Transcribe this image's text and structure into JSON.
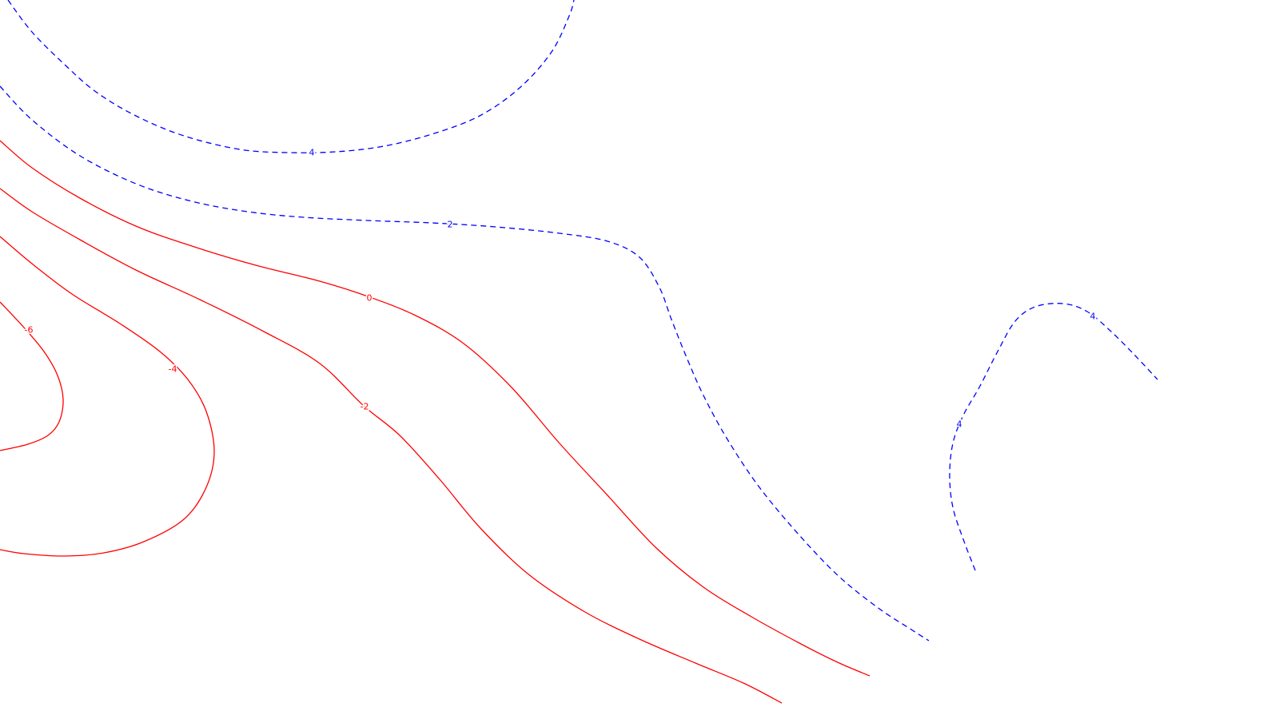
{
  "chart_data": {
    "type": "contour",
    "title": "",
    "xlabel": "",
    "ylabel": "",
    "grid": false,
    "legend": false,
    "colors": {
      "positive": "#0000ff",
      "negative": "#ff0000",
      "background": "#ffffff"
    },
    "line_styles": {
      "positive": "dashed",
      "negative": "solid"
    },
    "levels": [
      -6,
      -4,
      -2,
      0,
      2,
      4
    ],
    "contours": [
      {
        "level": 4,
        "label": "4",
        "sign": "positive",
        "points": [
          [
            10,
            0
          ],
          [
            40,
            40
          ],
          [
            80,
            80
          ],
          [
            120,
            115
          ],
          [
            170,
            145
          ],
          [
            230,
            170
          ],
          [
            300,
            187
          ],
          [
            360,
            191
          ],
          [
            420,
            190
          ],
          [
            480,
            183
          ],
          [
            540,
            168
          ],
          [
            600,
            145
          ],
          [
            650,
            110
          ],
          [
            690,
            65
          ],
          [
            712,
            20
          ],
          [
            718,
            0
          ]
        ]
      },
      {
        "level": 2,
        "label": "2",
        "sign": "positive",
        "points": [
          [
            0,
            108
          ],
          [
            40,
            150
          ],
          [
            100,
            195
          ],
          [
            170,
            230
          ],
          [
            240,
            252
          ],
          [
            310,
            265
          ],
          [
            380,
            272
          ],
          [
            460,
            276
          ],
          [
            540,
            279
          ],
          [
            620,
            284
          ],
          [
            700,
            292
          ],
          [
            760,
            302
          ],
          [
            800,
            322
          ],
          [
            825,
            360
          ],
          [
            840,
            400
          ],
          [
            860,
            450
          ],
          [
            880,
            495
          ],
          [
            910,
            550
          ],
          [
            950,
            610
          ],
          [
            1000,
            670
          ],
          [
            1050,
            722
          ],
          [
            1100,
            762
          ],
          [
            1140,
            788
          ],
          [
            1162,
            802
          ]
        ]
      },
      {
        "level": 4,
        "label": "4",
        "sign": "positive",
        "points": [
          [
            1220,
            714
          ],
          [
            1205,
            675
          ],
          [
            1192,
            635
          ],
          [
            1188,
            595
          ],
          [
            1192,
            555
          ],
          [
            1205,
            520
          ],
          [
            1225,
            485
          ],
          [
            1248,
            440
          ],
          [
            1270,
            402
          ],
          [
            1295,
            384
          ],
          [
            1330,
            380
          ],
          [
            1360,
            390
          ],
          [
            1390,
            415
          ],
          [
            1420,
            445
          ],
          [
            1448,
            475
          ]
        ]
      },
      {
        "level": 0,
        "label": "0",
        "sign": "negative",
        "points": [
          [
            0,
            176
          ],
          [
            40,
            210
          ],
          [
            100,
            248
          ],
          [
            170,
            283
          ],
          [
            240,
            308
          ],
          [
            320,
            332
          ],
          [
            400,
            352
          ],
          [
            460,
            371
          ],
          [
            520,
            395
          ],
          [
            580,
            430
          ],
          [
            640,
            485
          ],
          [
            700,
            555
          ],
          [
            760,
            620
          ],
          [
            820,
            685
          ],
          [
            880,
            735
          ],
          [
            940,
            772
          ],
          [
            1000,
            805
          ],
          [
            1050,
            830
          ],
          [
            1088,
            846
          ]
        ]
      },
      {
        "level": -2,
        "label": "-2",
        "sign": "negative",
        "points": [
          [
            0,
            236
          ],
          [
            40,
            265
          ],
          [
            100,
            300
          ],
          [
            170,
            338
          ],
          [
            250,
            375
          ],
          [
            330,
            415
          ],
          [
            400,
            455
          ],
          [
            455,
            508
          ],
          [
            500,
            545
          ],
          [
            550,
            600
          ],
          [
            600,
            660
          ],
          [
            660,
            718
          ],
          [
            730,
            765
          ],
          [
            800,
            800
          ],
          [
            870,
            830
          ],
          [
            930,
            855
          ],
          [
            978,
            880
          ]
        ]
      },
      {
        "level": -4,
        "label": "-4",
        "sign": "negative",
        "points": [
          [
            0,
            296
          ],
          [
            40,
            330
          ],
          [
            90,
            368
          ],
          [
            150,
            405
          ],
          [
            200,
            440
          ],
          [
            235,
            475
          ],
          [
            258,
            515
          ],
          [
            268,
            565
          ],
          [
            258,
            610
          ],
          [
            230,
            650
          ],
          [
            180,
            678
          ],
          [
            130,
            692
          ],
          [
            80,
            696
          ],
          [
            30,
            693
          ],
          [
            0,
            688
          ]
        ]
      },
      {
        "level": -6,
        "label": "-6",
        "sign": "negative",
        "points": [
          [
            0,
            378
          ],
          [
            30,
            410
          ],
          [
            55,
            440
          ],
          [
            72,
            470
          ],
          [
            79,
            500
          ],
          [
            74,
            528
          ],
          [
            60,
            545
          ],
          [
            35,
            556
          ],
          [
            0,
            564
          ]
        ]
      }
    ],
    "labels": [
      {
        "text": "4",
        "at": [
          390,
          191
        ],
        "sign": "positive"
      },
      {
        "text": "2",
        "at": [
          563,
          281
        ],
        "sign": "positive"
      },
      {
        "text": "4",
        "at": [
          1367,
          396
        ],
        "sign": "positive"
      },
      {
        "text": "4",
        "at": [
          1200,
          531
        ],
        "sign": "positive"
      },
      {
        "text": "0",
        "at": [
          462,
          373
        ],
        "sign": "negative"
      },
      {
        "text": "-2",
        "at": [
          456,
          509
        ],
        "sign": "negative"
      },
      {
        "text": "-4",
        "at": [
          216,
          462
        ],
        "sign": "negative"
      },
      {
        "text": "-6",
        "at": [
          36,
          413
        ],
        "sign": "negative"
      }
    ]
  }
}
